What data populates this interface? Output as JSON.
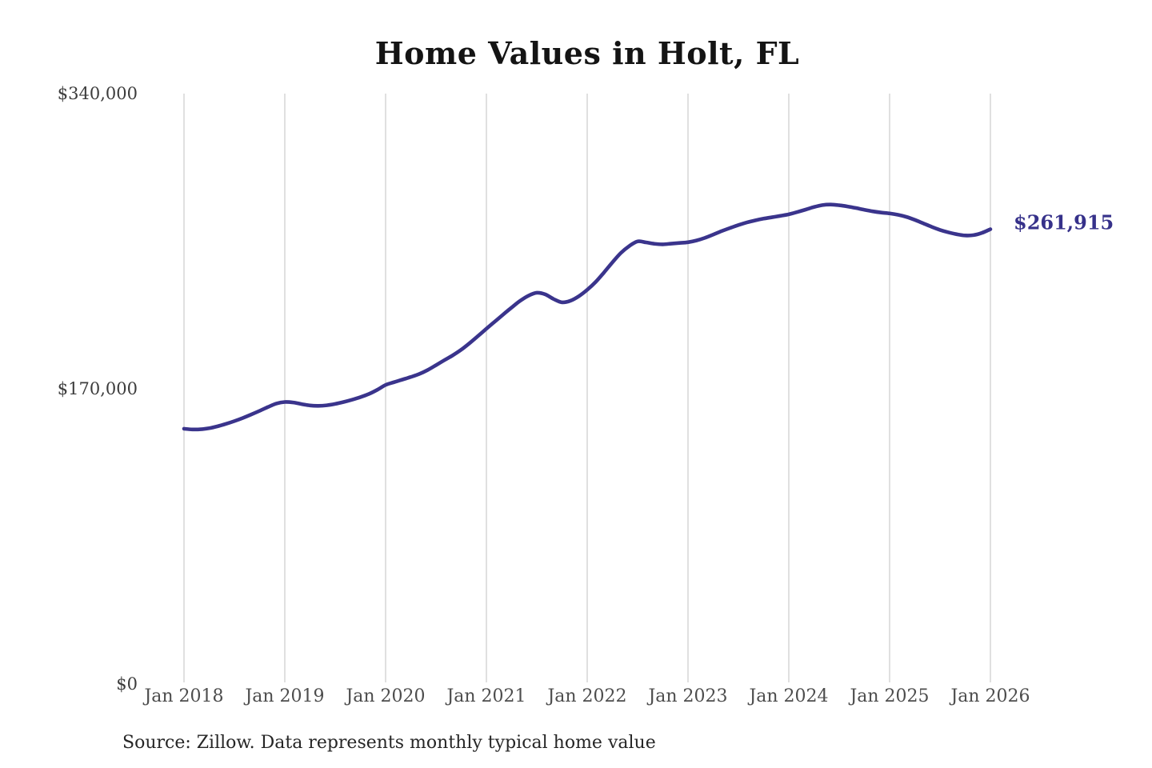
{
  "title": "Home Values in Holt, FL",
  "end_label": "$261,915",
  "source": "Source: Zillow. Data represents monthly typical home value",
  "colors": {
    "line": "#3a348c",
    "value_label": "#36318a",
    "grid": "#cbcbcb",
    "title_text": "#141414",
    "axis_text": "#4d4d4d"
  },
  "chart_data": {
    "type": "line",
    "title": "Home Values in Holt, FL",
    "xlabel": "",
    "ylabel": "",
    "ylim": [
      0,
      340000
    ],
    "grid": "vertical-only",
    "legend": "none",
    "x_tick_labels": [
      "Jan 2018",
      "Jan 2019",
      "Jan 2020",
      "Jan 2021",
      "Jan 2022",
      "Jan 2023",
      "Jan 2024",
      "Jan 2025",
      "Jan 2026"
    ],
    "y_ticks": [
      {
        "label": "$340,000",
        "value": 340000
      },
      {
        "label": "$170,000",
        "value": 170000
      },
      {
        "label": "$0",
        "value": 0
      }
    ],
    "x_start": "Jan 2018",
    "x_end": "Jan 2026",
    "x_interval": "monthly",
    "end_value": 261915,
    "series": [
      {
        "name": "Typical home value (USD)",
        "values": [
          147000,
          146600,
          146700,
          147300,
          148400,
          149800,
          151400,
          153200,
          155200,
          157300,
          159500,
          161500,
          162400,
          162100,
          161200,
          160400,
          160200,
          160500,
          161300,
          162400,
          163700,
          165200,
          167000,
          169400,
          172200,
          173800,
          175300,
          176800,
          178500,
          180800,
          183600,
          186500,
          189300,
          192500,
          196300,
          200400,
          204600,
          208700,
          212800,
          216800,
          220600,
          223600,
          225300,
          224400,
          221700,
          219800,
          220700,
          223300,
          227000,
          231500,
          237000,
          242800,
          248200,
          252200,
          254900,
          254300,
          253500,
          253200,
          253600,
          254000,
          254400,
          255400,
          256900,
          258800,
          260800,
          262600,
          264300,
          265800,
          267000,
          268000,
          268800,
          269600,
          270500,
          271800,
          273200,
          274700,
          275800,
          276100,
          275700,
          275000,
          274100,
          273100,
          272200,
          271500,
          271000,
          270200,
          269000,
          267300,
          265300,
          263300,
          261500,
          260100,
          259000,
          258300,
          258500,
          259800,
          261915
        ]
      }
    ]
  }
}
